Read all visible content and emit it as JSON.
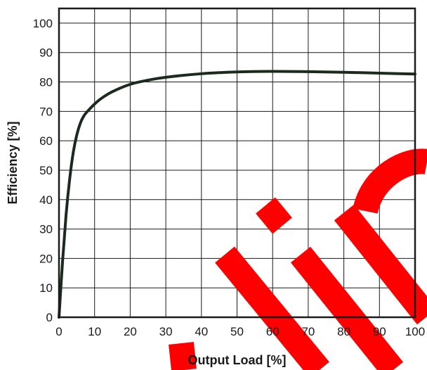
{
  "chart_data": {
    "type": "line",
    "xlabel": "Output Load [%]",
    "ylabel": "Efficiency [%]",
    "xlim": [
      0,
      100
    ],
    "ylim": [
      0,
      105
    ],
    "x_ticks": [
      0,
      10,
      20,
      30,
      40,
      50,
      60,
      70,
      80,
      90,
      100
    ],
    "y_ticks": [
      0,
      10,
      20,
      30,
      40,
      50,
      60,
      70,
      80,
      90,
      100
    ],
    "grid": true,
    "series": [
      {
        "color": "#1c2a1e",
        "x": [
          0,
          1,
          2,
          3,
          4,
          5,
          6,
          7,
          8,
          10,
          12,
          15,
          20,
          25,
          30,
          40,
          50,
          60,
          70,
          80,
          90,
          100
        ],
        "y": [
          0,
          19,
          35,
          47,
          56,
          62,
          66,
          68.5,
          70,
          72.5,
          74.5,
          76.7,
          79.2,
          80.6,
          81.6,
          82.8,
          83.4,
          83.6,
          83.5,
          83.3,
          83.0,
          82.7
        ]
      }
    ],
    "watermark": {
      "color": "#ff0000"
    }
  }
}
